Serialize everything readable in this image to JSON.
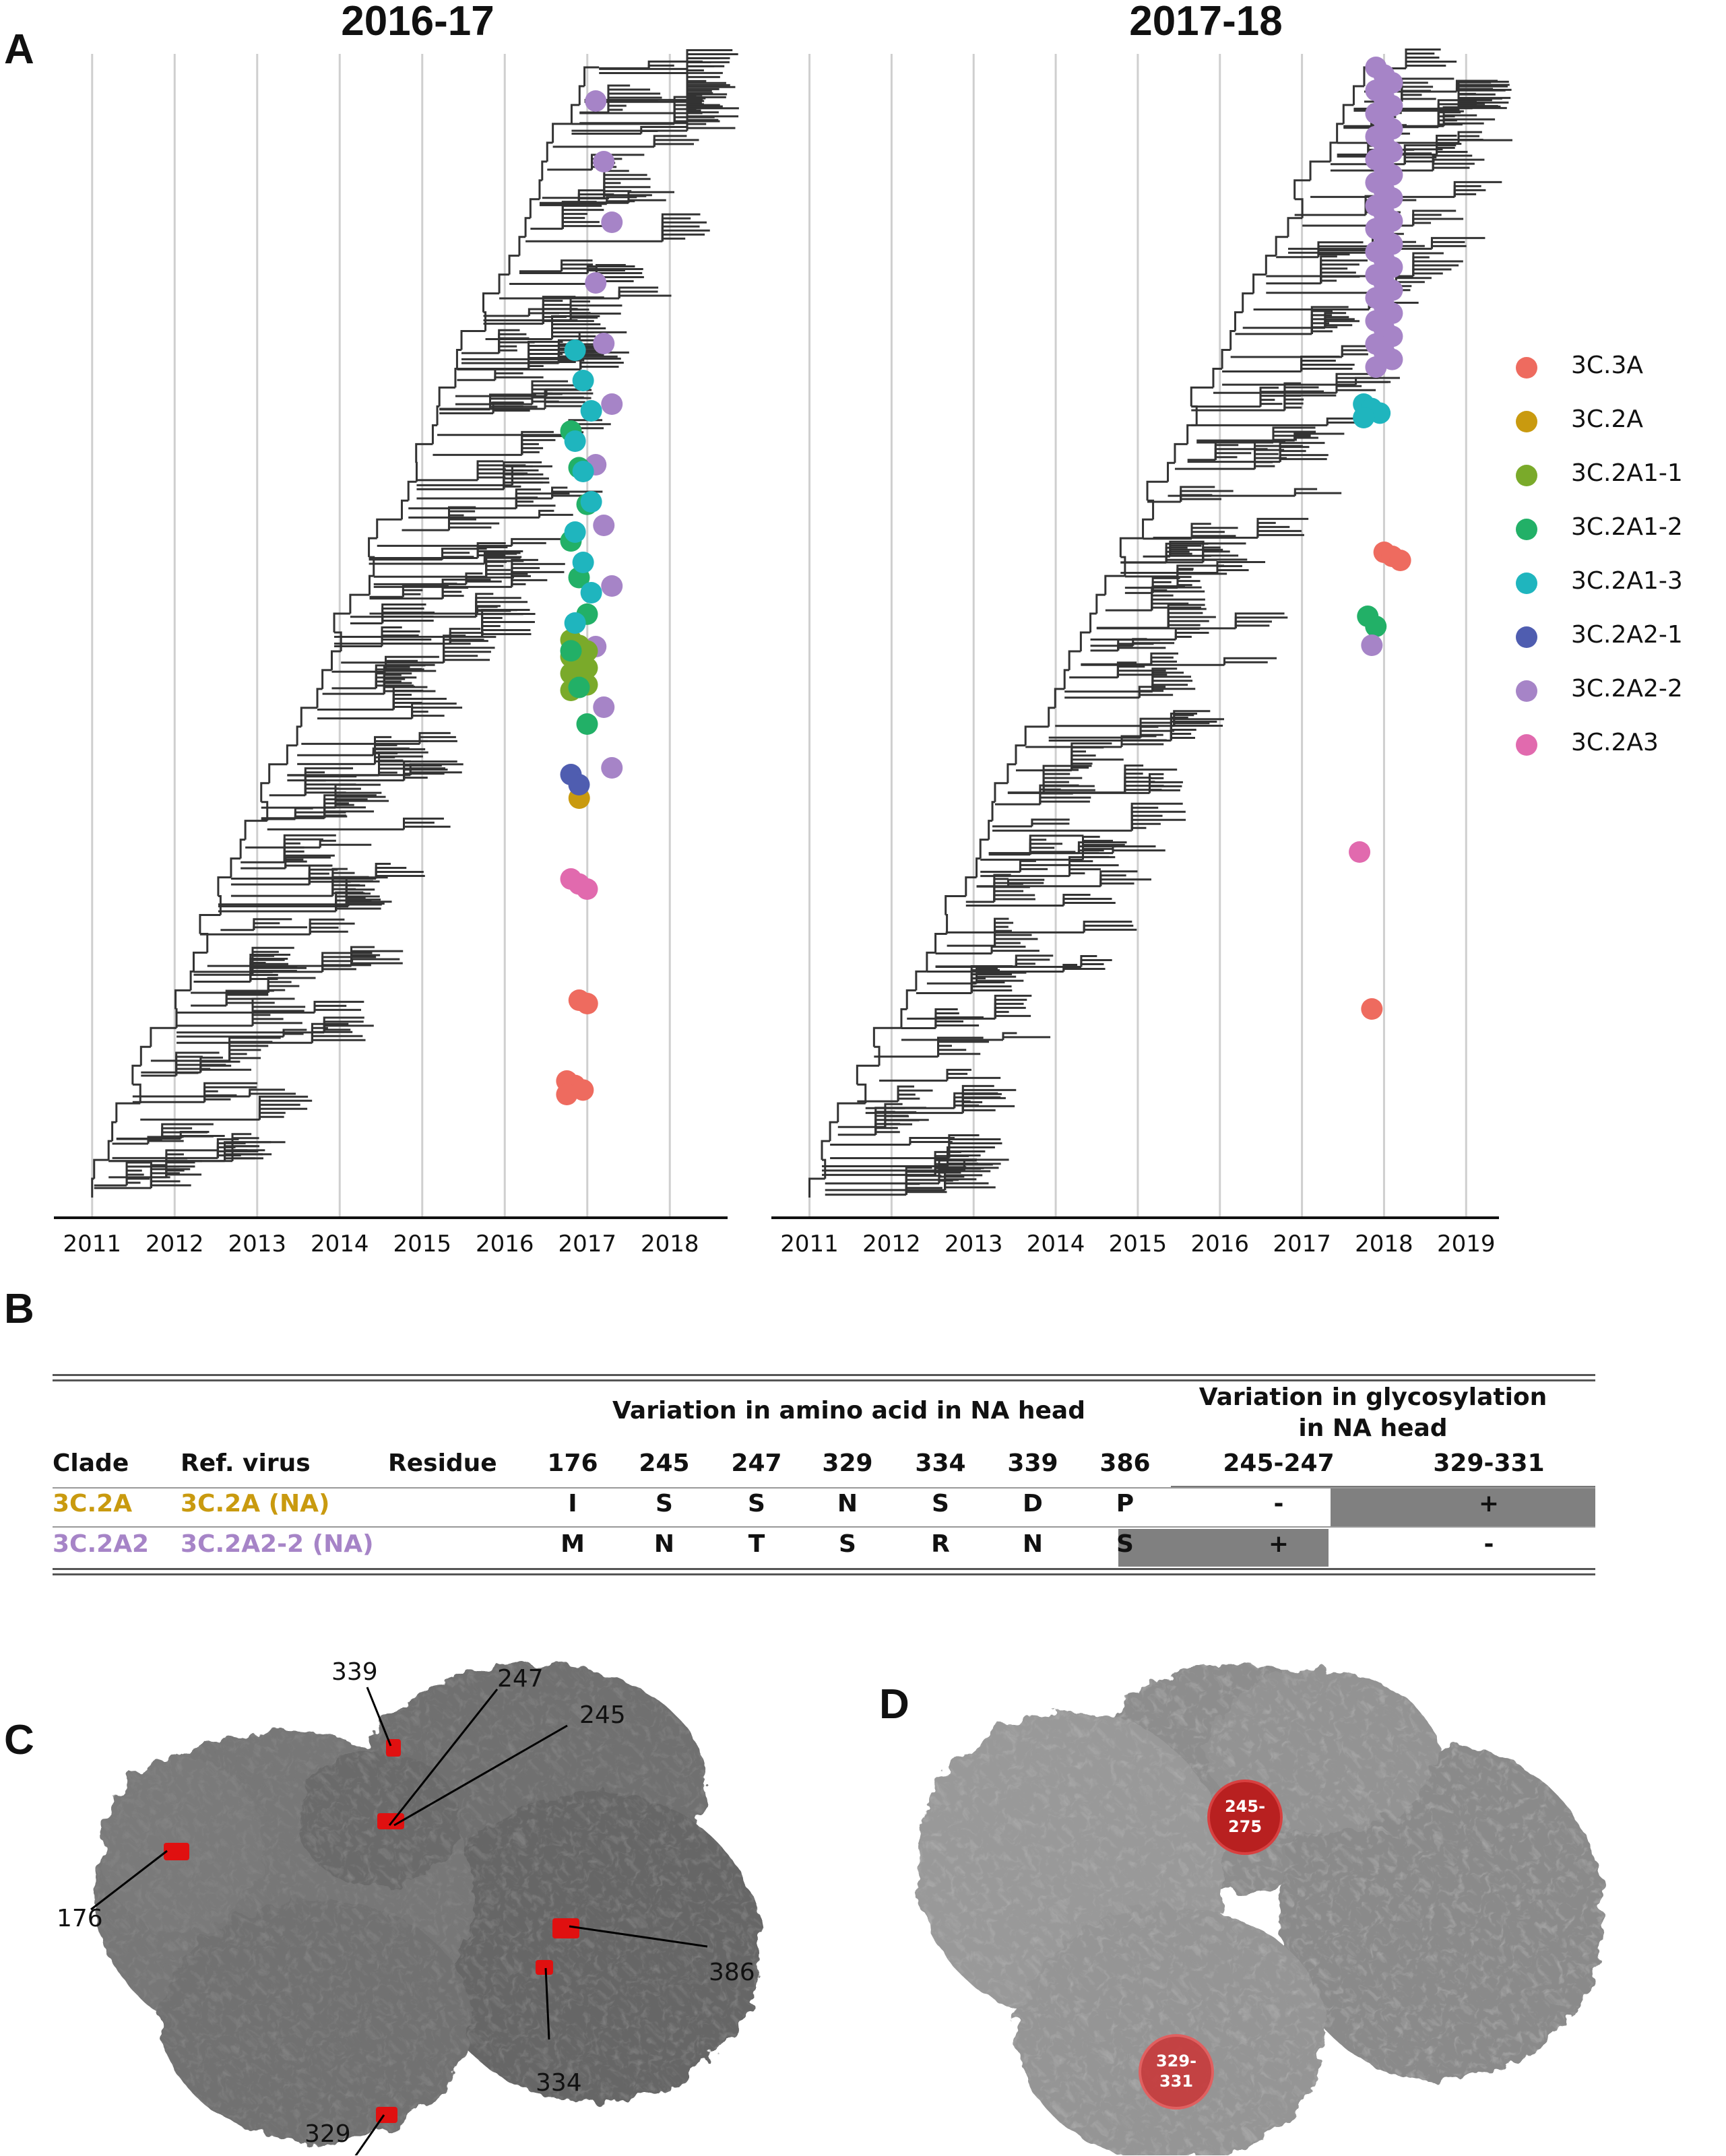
{
  "figure": {
    "panels": {
      "a": "A",
      "b": "B",
      "c": "C",
      "d": "D"
    }
  },
  "chart_data": [
    {
      "type": "scatter",
      "title": "2016-17",
      "x_ticks": [
        "2011",
        "2012",
        "2013",
        "2014",
        "2015",
        "2016",
        "2017",
        "2018"
      ],
      "xlim": [
        2010.7,
        2018.7
      ],
      "grid": true,
      "legend_placement": "right",
      "tip_points": [
        {
          "clade": "3C.3A",
          "x": 2017.0,
          "count": 2
        },
        {
          "clade": "3C.3A",
          "x": 2016.85,
          "count": 4
        },
        {
          "clade": "3C.2A3",
          "x": 2016.9,
          "count": 3
        },
        {
          "clade": "3C.2A",
          "x": 2017.0,
          "count": 1
        },
        {
          "clade": "3C.2A2-1",
          "x": 2016.9,
          "count": 2
        },
        {
          "clade": "3C.2A2-2",
          "x": 2017.2,
          "count": 12
        },
        {
          "clade": "3C.2A1-1",
          "x": 2016.9,
          "count": 10
        },
        {
          "clade": "3C.2A1-2",
          "x": 2016.9,
          "count": 9
        },
        {
          "clade": "3C.2A1-3",
          "x": 2016.95,
          "count": 10
        }
      ]
    },
    {
      "type": "scatter",
      "title": "2017-18",
      "x_ticks": [
        "2011",
        "2012",
        "2013",
        "2014",
        "2015",
        "2016",
        "2017",
        "2018",
        "2019"
      ],
      "xlim": [
        2010.7,
        2019.4
      ],
      "grid": true,
      "legend_placement": "right",
      "tip_points": [
        {
          "clade": "3C.3A",
          "x": 2017.95,
          "count": 1
        },
        {
          "clade": "3C.3A",
          "x": 2018.1,
          "count": 3
        },
        {
          "clade": "3C.2A3",
          "x": 2017.8,
          "count": 1
        },
        {
          "clade": "3C.2A1-2",
          "x": 2017.9,
          "count": 2
        },
        {
          "clade": "3C.2A2-2",
          "x": 2017.95,
          "count": 1
        },
        {
          "clade": "3C.2A1-3",
          "x": 2017.85,
          "count": 4
        },
        {
          "clade": "3C.2A2-2",
          "x": 2018.0,
          "count": 40
        }
      ]
    }
  ],
  "legend": [
    {
      "label": "3C.3A",
      "color": "#EE6B5F"
    },
    {
      "label": "3C.2A",
      "color": "#C99A0F"
    },
    {
      "label": "3C.2A1-1",
      "color": "#7AAA2A"
    },
    {
      "label": "3C.2A1-2",
      "color": "#22B067"
    },
    {
      "label": "3C.2A1-3",
      "color": "#1FB5BE"
    },
    {
      "label": "3C.2A2-1",
      "color": "#4F5DB0"
    },
    {
      "label": "3C.2A2-2",
      "color": "#A684C7"
    },
    {
      "label": "3C.2A3",
      "color": "#E16AAE"
    }
  ],
  "table": {
    "group_aa": "Variation in amino acid in NA head",
    "group_glyco": "Variation in glycosylation in NA head",
    "headers": [
      "Clade",
      "Ref. virus",
      "Residue",
      "176",
      "245",
      "247",
      "329",
      "334",
      "339",
      "386",
      "245-247",
      "329-331"
    ],
    "rows": [
      {
        "clade": "3C.2A",
        "ref": "3C.2A (NA)",
        "color": "#C99A0F",
        "aa": [
          "I",
          "S",
          "S",
          "N",
          "S",
          "D",
          "P"
        ],
        "g1": "-",
        "g2": "+"
      },
      {
        "clade": "3C.2A2",
        "ref": "3C.2A2-2 (NA)",
        "color": "#A684C7",
        "aa": [
          "M",
          "N",
          "T",
          "S",
          "R",
          "N",
          "S"
        ],
        "g1": "+",
        "g2": "-"
      }
    ]
  },
  "structure_c": {
    "labels": [
      "339",
      "247",
      "245",
      "176",
      "386",
      "334",
      "329"
    ]
  },
  "structure_d": {
    "sites": [
      "245-\n275",
      "329-\n331"
    ]
  }
}
